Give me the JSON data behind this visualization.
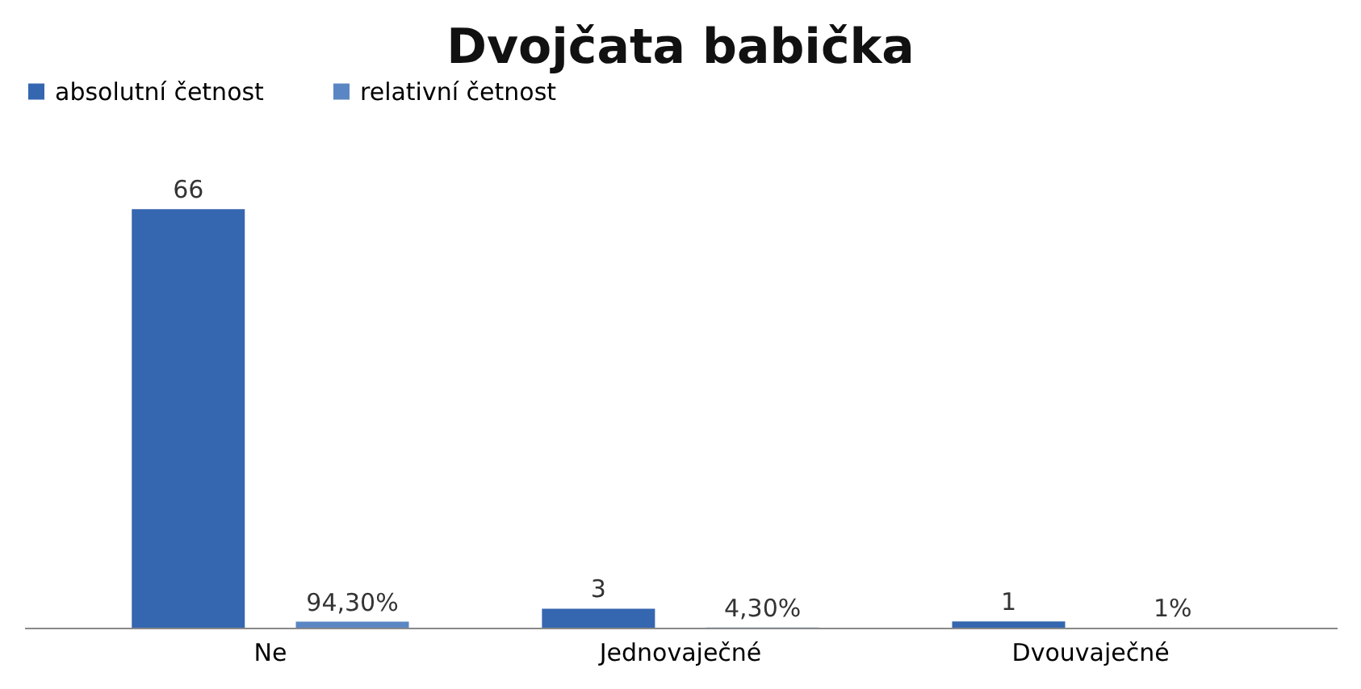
{
  "chart_data": {
    "type": "bar",
    "title": "Dvojčata babička",
    "categories": [
      "Ne",
      "Jednovaječné",
      "Dvouvaječné"
    ],
    "series": [
      {
        "name": "absolutní četnost",
        "color": "#3566b0",
        "values": [
          66,
          3,
          1
        ],
        "value_labels": [
          "66",
          "3",
          "1"
        ]
      },
      {
        "name": "relativní četnost",
        "color": "#5b86c4",
        "values": [
          0.943,
          0.043,
          0.01
        ],
        "value_labels": [
          "94,30%",
          "4,30%",
          "1%"
        ]
      }
    ],
    "legend": "top",
    "grid": false
  }
}
